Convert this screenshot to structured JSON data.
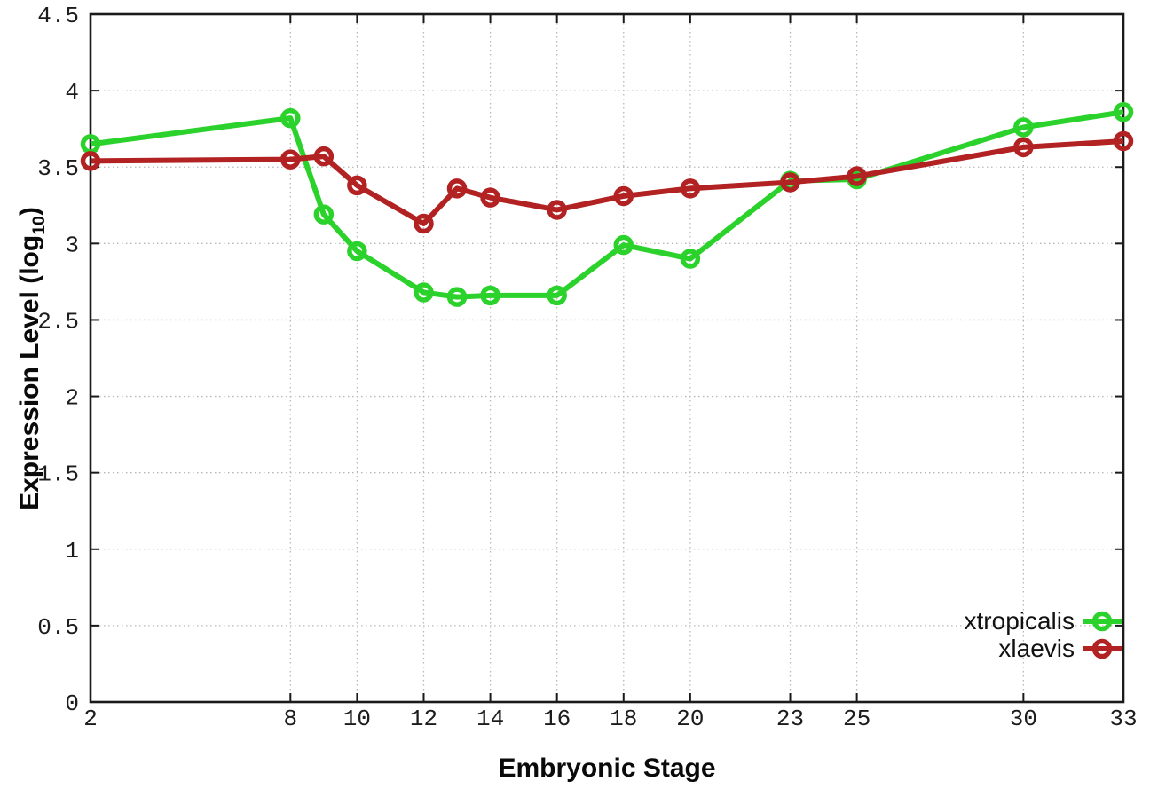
{
  "figure": {
    "background": "#ffffff",
    "xlabel": "Embryonic Stage",
    "ylabel_full": "Expression Level (log10)",
    "ylabel_main": "Expression Level (log",
    "ylabel_sub": "10",
    "ylabel_close": ")"
  },
  "chart_data": {
    "type": "line",
    "title": "",
    "xlabel": "Embryonic Stage",
    "ylabel": "Expression Level (log10)",
    "xlim": [
      2,
      33
    ],
    "ylim": [
      0,
      4.5
    ],
    "grid": true,
    "grid_style": "dotted",
    "grid_color": "#b8b8b8",
    "border_color": "#1a1a1a",
    "marker": "open-circle",
    "legend_position": "inside bottom-right",
    "x": [
      2,
      8,
      9,
      10,
      12,
      13,
      14,
      16,
      18,
      20,
      23,
      25,
      30,
      33
    ],
    "x_ticks": [
      2,
      8,
      10,
      12,
      14,
      16,
      18,
      20,
      23,
      25,
      30,
      33
    ],
    "x_tick_labels": [
      "2",
      "8",
      "10",
      "12",
      "14",
      "16",
      "18",
      "20",
      "23",
      "25",
      "30",
      "33"
    ],
    "y_ticks": [
      0,
      0.5,
      1,
      1.5,
      2,
      2.5,
      3,
      3.5,
      4,
      4.5
    ],
    "y_tick_labels": [
      "0",
      "0.5",
      "1",
      "1.5",
      "2",
      "2.5",
      "3",
      "3.5",
      "4",
      "4.5"
    ],
    "series": [
      {
        "name": "xtropicalis",
        "color": "#2bd22b",
        "values": [
          3.65,
          3.82,
          3.19,
          2.95,
          2.68,
          2.65,
          2.66,
          2.66,
          2.99,
          2.9,
          3.41,
          3.42,
          3.76,
          3.86
        ]
      },
      {
        "name": "xlaevis",
        "color": "#b22222",
        "values": [
          3.54,
          3.55,
          3.57,
          3.38,
          3.13,
          3.36,
          3.3,
          3.22,
          3.31,
          3.36,
          3.4,
          3.44,
          3.63,
          3.67
        ]
      }
    ]
  }
}
